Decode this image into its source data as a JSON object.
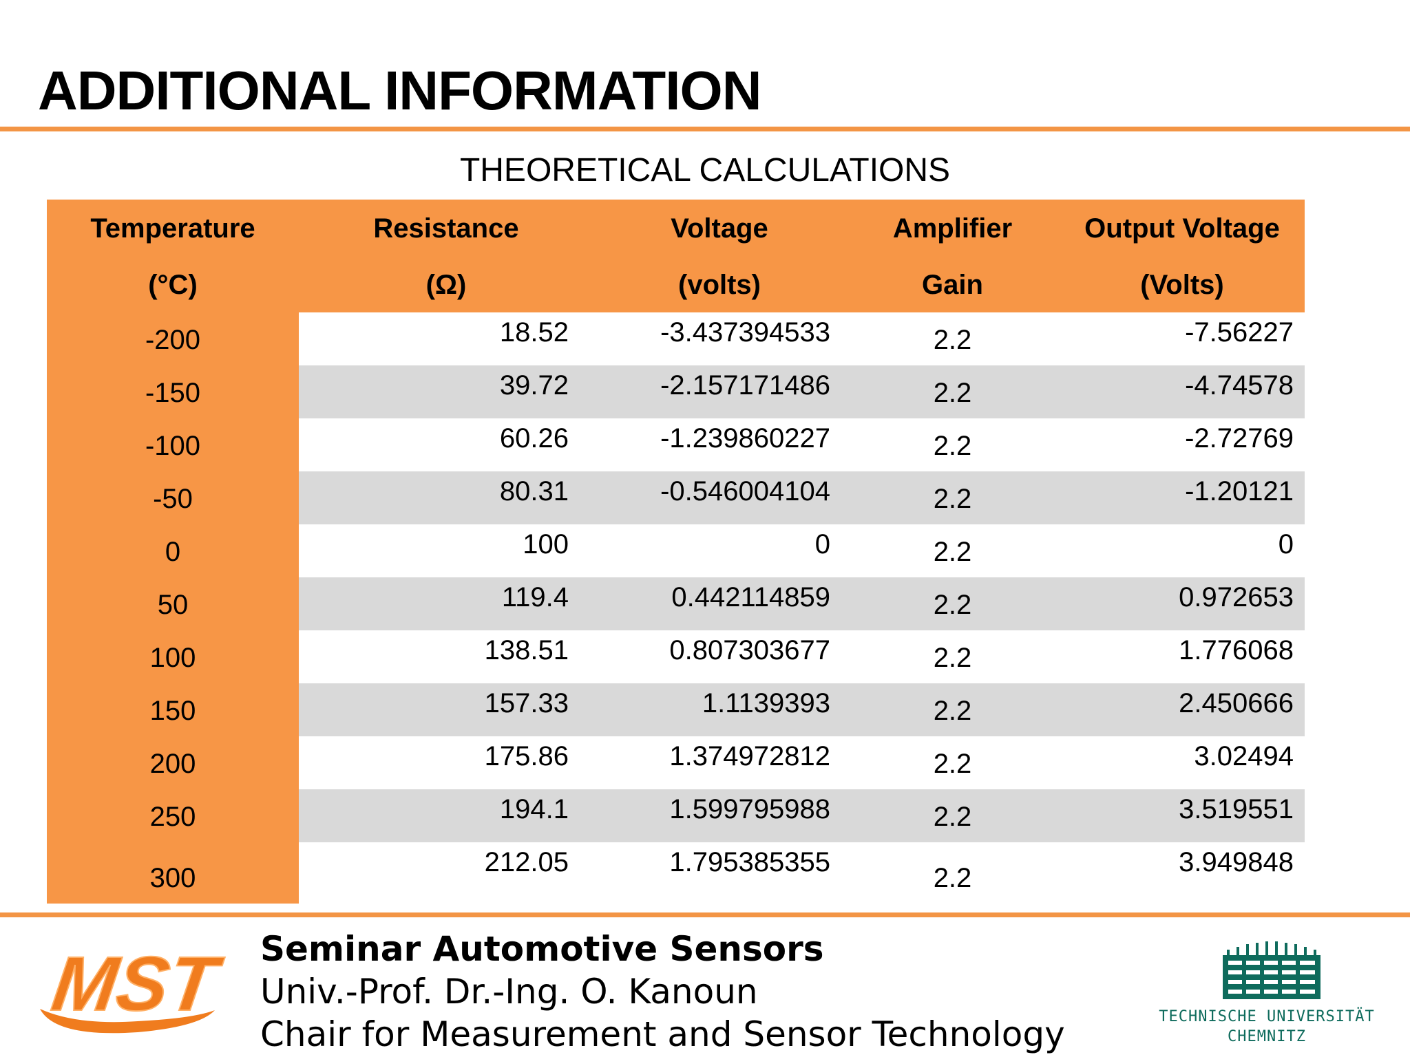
{
  "slide": {
    "title": "ADDITIONAL INFORMATION",
    "table_caption": "THEORETICAL CALCULATIONS"
  },
  "table": {
    "headers_row1": [
      "Temperature",
      "Resistance",
      "Voltage",
      "Amplifier",
      "Output Voltage"
    ],
    "headers_row2": [
      "(°C)",
      "(Ω)",
      "(volts)",
      "Gain",
      "(Volts)"
    ],
    "rows": [
      [
        "-200",
        "18.52",
        "-3.437394533",
        "2.2",
        "-7.56227"
      ],
      [
        "-150",
        "39.72",
        "-2.157171486",
        "2.2",
        "-4.74578"
      ],
      [
        "-100",
        "60.26",
        "-1.239860227",
        "2.2",
        "-2.72769"
      ],
      [
        "-50",
        "80.31",
        "-0.546004104",
        "2.2",
        "-1.20121"
      ],
      [
        "0",
        "100",
        "0",
        "2.2",
        "0"
      ],
      [
        "50",
        "119.4",
        "0.442114859",
        "2.2",
        "0.972653"
      ],
      [
        "100",
        "138.51",
        "0.807303677",
        "2.2",
        "1.776068"
      ],
      [
        "150",
        "157.33",
        "1.1139393",
        "2.2",
        "2.450666"
      ],
      [
        "200",
        "175.86",
        "1.374972812",
        "2.2",
        "3.02494"
      ],
      [
        "250",
        "194.1",
        "1.599795988",
        "2.2",
        "3.519551"
      ],
      [
        "300",
        "212.05",
        "1.795385355",
        "2.2",
        "3.949848"
      ]
    ]
  },
  "footer": {
    "logo_text": "MST",
    "line1": "Seminar Automotive Sensors",
    "line2": "Univ.-Prof. Dr.-Ing. O. Kanoun",
    "line3": "Chair for Measurement and Sensor Technology",
    "university_line1": "TECHNISCHE UNIVERSITÄT",
    "university_line2": "CHEMNITZ"
  },
  "colors": {
    "accent_orange": "#f79646",
    "rule_orange": "#f39545",
    "stripe_gray": "#d9d9d9",
    "university_green": "#0e6b5c"
  }
}
